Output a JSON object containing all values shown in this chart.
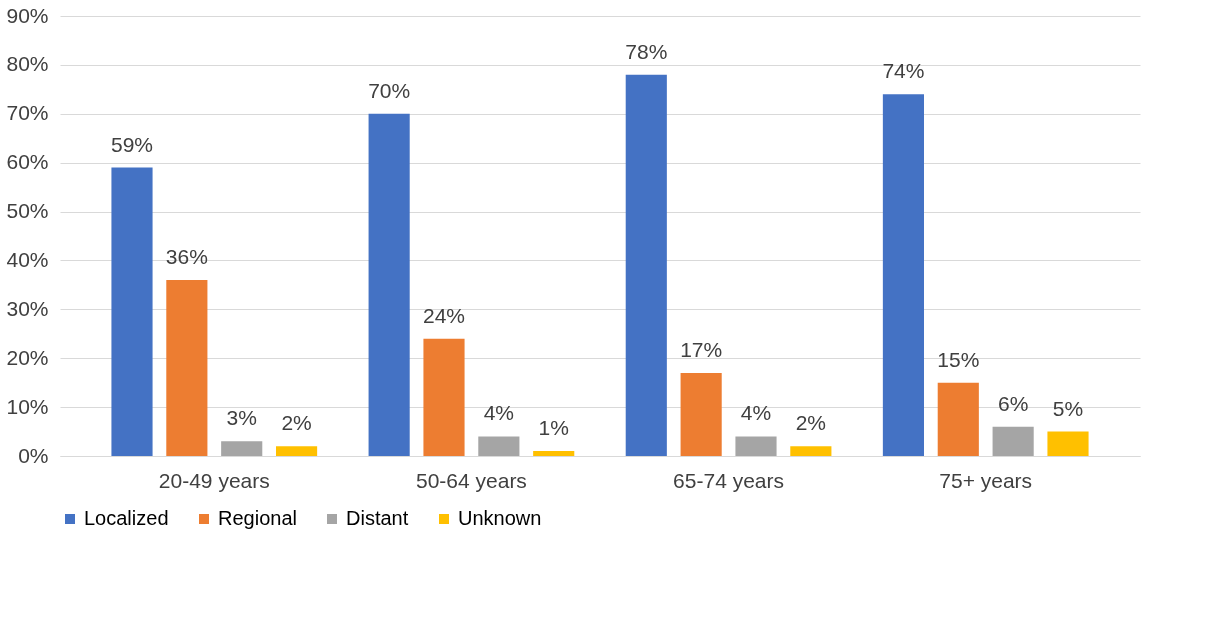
{
  "chart_data": {
    "type": "bar",
    "categories": [
      "20-49 years",
      "50-64 years",
      "65-74 years",
      "75+ years"
    ],
    "series": [
      {
        "name": "Localized",
        "color": "#4472c4",
        "values": [
          59,
          70,
          78,
          74
        ],
        "value_labels": [
          "59%",
          "70%",
          "78%",
          "74%"
        ]
      },
      {
        "name": "Regional",
        "color": "#ed7d31",
        "values": [
          36,
          24,
          17,
          15
        ],
        "value_labels": [
          "36%",
          "24%",
          "17%",
          "15%"
        ]
      },
      {
        "name": "Distant",
        "color": "#a5a5a5",
        "values": [
          3,
          4,
          4,
          6
        ],
        "value_labels": [
          "3%",
          "4%",
          "4%",
          "6%"
        ]
      },
      {
        "name": "Unknown",
        "color": "#ffc000",
        "values": [
          2,
          1,
          2,
          5
        ],
        "value_labels": [
          "2%",
          "1%",
          "2%",
          "5%"
        ]
      }
    ],
    "ylim": [
      0,
      90
    ],
    "yticks": [
      {
        "value": 0,
        "label": "0%"
      },
      {
        "value": 10,
        "label": "10%"
      },
      {
        "value": 20,
        "label": "20%"
      },
      {
        "value": 30,
        "label": "30%"
      },
      {
        "value": 40,
        "label": "40%"
      },
      {
        "value": 50,
        "label": "50%"
      },
      {
        "value": 60,
        "label": "60%"
      },
      {
        "value": 70,
        "label": "70%"
      },
      {
        "value": 80,
        "label": "80%"
      },
      {
        "value": 90,
        "label": "90%"
      }
    ],
    "grid": "y",
    "legend": "bottom"
  }
}
